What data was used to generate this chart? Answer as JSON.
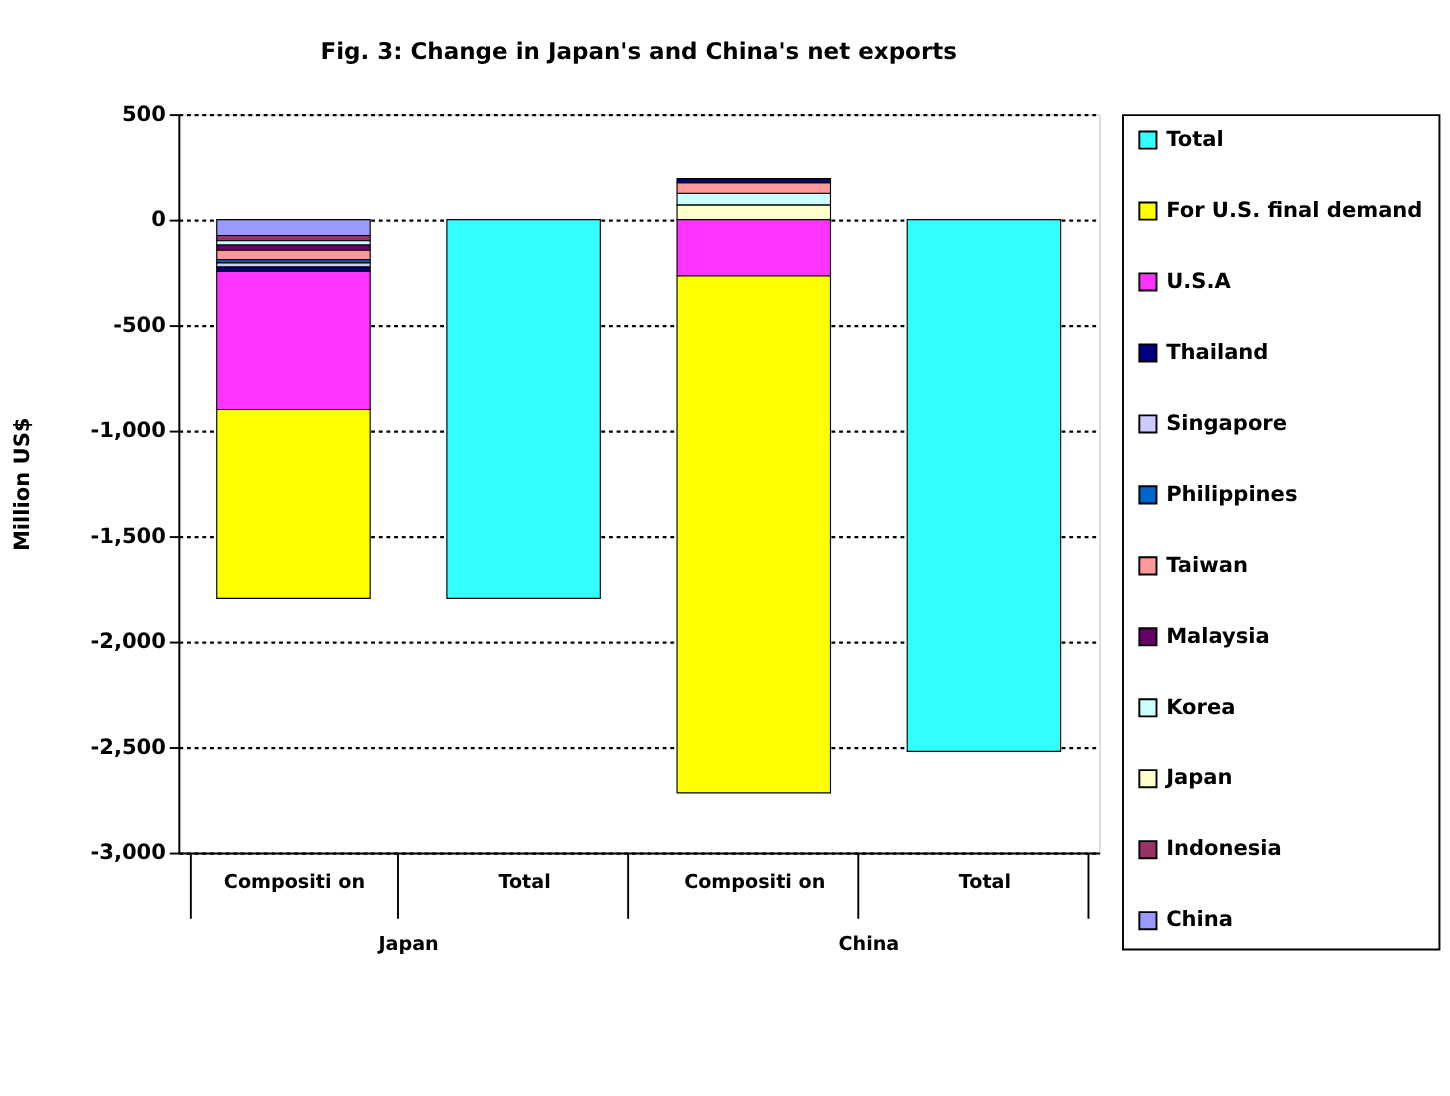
{
  "chart_data": {
    "type": "bar",
    "title": "Fig. 3: Change in Japan's and China's net exports",
    "ylabel": "Million US$",
    "categories": [
      "Compositi on",
      "Total",
      "Compositi on",
      "Total"
    ],
    "annotations": [
      "Japan",
      "China"
    ],
    "stacked": true,
    "ylim": [
      -3000,
      500
    ],
    "yticks": [
      {
        "value": 500,
        "label": "500"
      },
      {
        "value": 0,
        "label": "0"
      },
      {
        "value": -500,
        "label": "-500"
      },
      {
        "value": -1000,
        "label": "-1,000"
      },
      {
        "value": -1500,
        "label": "-1,500"
      },
      {
        "value": -2000,
        "label": "-2,000"
      },
      {
        "value": -2500,
        "label": "-2,500"
      },
      {
        "value": -3000,
        "label": "-3,000"
      }
    ],
    "grid": "y",
    "legend": "right",
    "series": [
      {
        "name": "China",
        "color": "#9999ff",
        "values": [
          -75,
          null,
          null,
          null
        ]
      },
      {
        "name": "Indonesia",
        "color": "#993366",
        "values": [
          -25,
          null,
          null,
          null
        ]
      },
      {
        "name": "Japan",
        "color": "#ffffcc",
        "values": [
          null,
          null,
          70,
          null
        ]
      },
      {
        "name": "Korea",
        "color": "#ccffff",
        "values": [
          -20,
          null,
          55,
          null
        ]
      },
      {
        "name": "Malaysia",
        "color": "#660066",
        "values": [
          -25,
          null,
          null,
          null
        ]
      },
      {
        "name": "Taiwan",
        "color": "#ff9999",
        "values": [
          -45,
          null,
          50,
          null
        ]
      },
      {
        "name": "Philippines",
        "color": "#0066cc",
        "values": [
          -15,
          null,
          null,
          null
        ]
      },
      {
        "name": "Singapore",
        "color": "#ccccff",
        "values": [
          -20,
          null,
          null,
          null
        ]
      },
      {
        "name": "Thailand",
        "color": "#000080",
        "values": [
          -20,
          null,
          20,
          null
        ]
      },
      {
        "name": "U.S.A",
        "color": "#ff33ff",
        "values": [
          -655,
          null,
          -267,
          null
        ]
      },
      {
        "name": "For U.S. final demand",
        "color": "#ffff00",
        "values": [
          -895,
          null,
          -2450,
          null
        ]
      },
      {
        "name": "Total",
        "color": "#33ffff",
        "values": [
          null,
          -1795,
          null,
          -2520
        ]
      }
    ]
  }
}
